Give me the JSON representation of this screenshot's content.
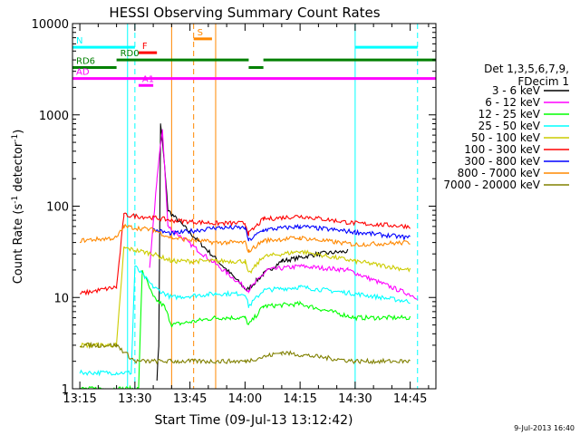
{
  "chart_data": {
    "type": "line",
    "title": "HESSI Observing Summary Count Rates",
    "xlabel": "Start Time (09-Jul-13 13:12:42)",
    "ylabel_main": "Count Rate (s",
    "ylabel_sup1": "-1",
    "ylabel_mid": " detector",
    "ylabel_sup2": "-1",
    "ylabel_end": ")",
    "ylog": true,
    "xlim": [
      "13:13",
      "14:52"
    ],
    "ylim": [
      1,
      10000
    ],
    "x_ticks": [
      "13:15",
      "13:30",
      "13:45",
      "14:00",
      "14:15",
      "14:30",
      "14:45"
    ],
    "y_ticks": [
      "1",
      "10",
      "100",
      "1000",
      "10000"
    ],
    "legend_title_1": "Det 1,3,5,6,7,9,",
    "legend_title_2": "FDecim 1",
    "legend_placement": "right",
    "series": [
      {
        "name": "3 - 6 keV",
        "color": "#000000",
        "points": [
          [
            "13:36:00",
            1.3
          ],
          [
            "13:36:30",
            3.0
          ],
          [
            "13:37:00",
            800
          ],
          [
            "13:38:00",
            300
          ],
          [
            "13:39:00",
            90
          ],
          [
            "14:00:30",
            12
          ],
          [
            "14:05:00",
            18
          ],
          [
            "14:10:00",
            25
          ],
          [
            "14:20:00",
            30
          ],
          [
            "14:28:00",
            32
          ]
        ]
      },
      {
        "name": "6 - 12 keV",
        "color": "#ff00ff",
        "points": [
          [
            "13:34:00",
            20
          ],
          [
            "13:36:00",
            200
          ],
          [
            "13:37:30",
            700
          ],
          [
            "13:39:00",
            60
          ],
          [
            "14:01:00",
            12
          ],
          [
            "14:06:00",
            20
          ],
          [
            "14:15:00",
            22
          ],
          [
            "14:28:00",
            20
          ],
          [
            "14:47:00",
            10
          ]
        ]
      },
      {
        "name": "12 - 25 keV",
        "color": "#00ff00",
        "points": [
          [
            "13:15:00",
            1
          ],
          [
            "13:31:00",
            1
          ],
          [
            "13:32:00",
            20
          ],
          [
            "13:35:00",
            10
          ],
          [
            "13:38:00",
            8
          ],
          [
            "13:40:00",
            5
          ],
          [
            "13:52:00",
            6
          ],
          [
            "14:00:00",
            6
          ],
          [
            "14:01:00",
            5
          ],
          [
            "14:05:00",
            8
          ],
          [
            "14:15:00",
            8.5
          ],
          [
            "14:30:00",
            6
          ],
          [
            "14:45:00",
            6
          ]
        ]
      },
      {
        "name": "25 - 50 keV",
        "color": "#00ffff",
        "points": [
          [
            "13:15:00",
            1.5
          ],
          [
            "13:29:00",
            1.5
          ],
          [
            "13:30:00",
            22
          ],
          [
            "13:35:00",
            13
          ],
          [
            "13:40:00",
            10
          ],
          [
            "13:52:00",
            11
          ],
          [
            "14:00:00",
            11
          ],
          [
            "14:01:00",
            8
          ],
          [
            "14:05:00",
            12
          ],
          [
            "14:15:00",
            13
          ],
          [
            "14:30:00",
            11
          ],
          [
            "14:45:00",
            9
          ]
        ]
      },
      {
        "name": "50 - 100 keV",
        "color": "#cccc00",
        "points": [
          [
            "13:15:00",
            3
          ],
          [
            "13:25:00",
            3
          ],
          [
            "13:27:00",
            35
          ],
          [
            "13:35:00",
            30
          ],
          [
            "13:40:00",
            25
          ],
          [
            "13:52:00",
            25
          ],
          [
            "14:00:00",
            25
          ],
          [
            "14:01:00",
            18
          ],
          [
            "14:05:00",
            28
          ],
          [
            "14:15:00",
            32
          ],
          [
            "14:30:00",
            25
          ],
          [
            "14:45:00",
            20
          ]
        ]
      },
      {
        "name": "100 - 300 keV",
        "color": "#ff0000",
        "points": [
          [
            "13:15:00",
            11
          ],
          [
            "13:25:00",
            13
          ],
          [
            "13:27:00",
            80
          ],
          [
            "13:35:00",
            75
          ],
          [
            "13:40:00",
            70
          ],
          [
            "13:52:00",
            65
          ],
          [
            "14:00:00",
            65
          ],
          [
            "14:01:00",
            50
          ],
          [
            "14:05:00",
            72
          ],
          [
            "14:15:00",
            78
          ],
          [
            "14:30:00",
            65
          ],
          [
            "14:45:00",
            60
          ]
        ]
      },
      {
        "name": "300 - 800 keV",
        "color": "#0000ff",
        "points": [
          [
            "13:35:00",
            55
          ],
          [
            "13:40:00",
            50
          ],
          [
            "13:52:00",
            58
          ],
          [
            "14:00:00",
            58
          ],
          [
            "14:01:00",
            42
          ],
          [
            "14:05:00",
            55
          ],
          [
            "14:15:00",
            60
          ],
          [
            "14:30:00",
            52
          ],
          [
            "14:45:00",
            45
          ]
        ]
      },
      {
        "name": "800 - 7000 keV",
        "color": "#ff8800",
        "points": [
          [
            "13:15:00",
            42
          ],
          [
            "13:25:00",
            45
          ],
          [
            "13:27:00",
            60
          ],
          [
            "13:35:00",
            55
          ],
          [
            "13:40:00",
            45
          ],
          [
            "13:52:00",
            40
          ],
          [
            "14:00:00",
            40
          ],
          [
            "14:01:00",
            32
          ],
          [
            "14:05:00",
            42
          ],
          [
            "14:15:00",
            45
          ],
          [
            "14:30:00",
            38
          ],
          [
            "14:45:00",
            40
          ]
        ]
      },
      {
        "name": "7000 - 20000 keV",
        "color": "#808000",
        "points": [
          [
            "13:15:00",
            3
          ],
          [
            "13:20:00",
            3
          ],
          [
            "13:25:00",
            3
          ],
          [
            "13:30:00",
            2
          ],
          [
            "13:40:00",
            2
          ],
          [
            "13:52:00",
            2
          ],
          [
            "14:00:00",
            2
          ],
          [
            "14:10:00",
            2.5
          ],
          [
            "14:30:00",
            2
          ],
          [
            "14:45:00",
            2
          ]
        ]
      }
    ],
    "flags": [
      {
        "label": "N",
        "color": "#00ffff",
        "y": 5500,
        "segments": [
          [
            "13:13",
            "13:30"
          ],
          [
            "14:30",
            "14:47"
          ]
        ]
      },
      {
        "label": "S",
        "color": "#ff8800",
        "y": 6800,
        "segments": [
          [
            "13:46",
            "13:51"
          ]
        ]
      },
      {
        "label": "F",
        "color": "#ff0000",
        "y": 4800,
        "segments": [
          [
            "13:31",
            "13:36"
          ]
        ]
      },
      {
        "label": "RD0",
        "color": "#008000",
        "y": 4000,
        "segments": [
          [
            "13:25",
            "14:01"
          ],
          [
            "14:05",
            "14:52"
          ]
        ]
      },
      {
        "label": "RD6",
        "color": "#008000",
        "y": 3300,
        "segments": [
          [
            "13:13",
            "13:25"
          ],
          [
            "14:01",
            "14:05"
          ]
        ]
      },
      {
        "label": "AD",
        "color": "#ff00ff",
        "y": 2500,
        "segments": [
          [
            "13:13",
            "14:52"
          ]
        ]
      },
      {
        "label": "A1",
        "color": "#ff00ff",
        "y": 2100,
        "segments": [
          [
            "13:31",
            "13:35"
          ]
        ]
      }
    ],
    "vlines": [
      {
        "x": "13:30",
        "color": "#00ffff",
        "style": "dashed"
      },
      {
        "x": "13:28",
        "color": "#00ffff",
        "style": "solid"
      },
      {
        "x": "13:40",
        "color": "#ff8800",
        "style": "solid"
      },
      {
        "x": "13:46",
        "color": "#ff8800",
        "style": "dashed"
      },
      {
        "x": "13:52",
        "color": "#ff8800",
        "style": "solid"
      },
      {
        "x": "14:30",
        "color": "#00ffff",
        "style": "solid"
      },
      {
        "x": "14:47",
        "color": "#00ffff",
        "style": "dashed"
      }
    ],
    "footer_timestamp": "9-Jul-2013 16:40"
  }
}
